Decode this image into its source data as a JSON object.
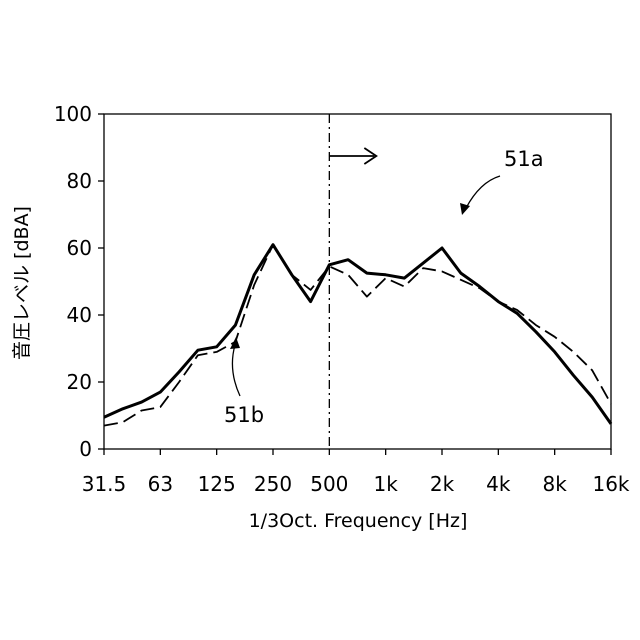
{
  "chart_data": {
    "type": "line",
    "xlabel": "1/3Oct. Frequency [Hz]",
    "ylabel": "音圧レベル [dBA]",
    "ylim": [
      0,
      100
    ],
    "y_ticks": [
      0,
      20,
      40,
      60,
      80,
      100
    ],
    "x_ticks": [
      "31.5",
      "63",
      "125",
      "250",
      "500",
      "1k",
      "2k",
      "4k",
      "8k",
      "16k"
    ],
    "x": [
      "31.5",
      "40",
      "50",
      "63",
      "80",
      "100",
      "125",
      "160",
      "200",
      "250",
      "315",
      "400",
      "500",
      "630",
      "800",
      "1k",
      "1.25k",
      "1.6k",
      "2k",
      "2.5k",
      "3.15k",
      "4k",
      "5k",
      "6.3k",
      "8k",
      "10k",
      "12.5k",
      "16k"
    ],
    "grid": false,
    "series": [
      {
        "name": "51a",
        "line_style": "solid",
        "color": "#000000",
        "values": [
          9.5,
          12,
          14,
          17,
          23,
          29.5,
          30.5,
          37,
          52,
          61,
          52,
          44,
          55,
          56.5,
          52.5,
          52,
          51,
          55.5,
          60,
          52.5,
          48.5,
          44,
          40.5,
          35,
          29,
          22,
          15.5,
          7.5
        ]
      },
      {
        "name": "51b",
        "line_style": "dashed",
        "color": "#000000",
        "values": [
          7,
          8,
          11.5,
          12.5,
          20,
          28,
          29,
          32,
          49,
          61,
          52,
          47.5,
          54.5,
          52,
          45.5,
          51,
          48.5,
          54,
          53,
          50.5,
          48,
          44,
          41.5,
          37,
          33.5,
          29,
          23.5,
          13.5
        ]
      }
    ],
    "annotations": [
      {
        "text": "51a",
        "target_series": "51a"
      },
      {
        "text": "51b",
        "target_series": "51b"
      }
    ],
    "marker_line_at": "500",
    "marker_line_style": "dash-dot"
  }
}
